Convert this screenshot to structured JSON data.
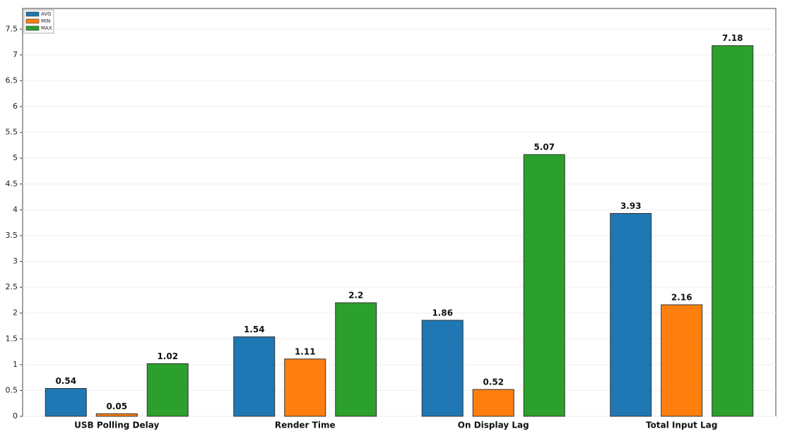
{
  "chart_data": {
    "type": "bar",
    "categories": [
      "USB Polling Delay",
      "Render Time",
      "On Display Lag",
      "Total Input Lag"
    ],
    "series": [
      {
        "name": "AVG",
        "color": "#1f77b4",
        "values": [
          0.54,
          1.54,
          1.86,
          3.93
        ]
      },
      {
        "name": "MIN",
        "color": "#ff7f0e",
        "values": [
          0.05,
          1.11,
          0.52,
          2.16
        ]
      },
      {
        "name": "MAX",
        "color": "#2ca02c",
        "values": [
          1.02,
          2.2,
          5.07,
          7.18
        ]
      }
    ],
    "ylim": [
      0,
      7.9
    ],
    "yticks": [
      0,
      0.5,
      1,
      1.5,
      2,
      2.5,
      3,
      3.5,
      4,
      4.5,
      5,
      5.5,
      6,
      6.5,
      7,
      7.5
    ],
    "grid": true,
    "legend": "top-left"
  }
}
